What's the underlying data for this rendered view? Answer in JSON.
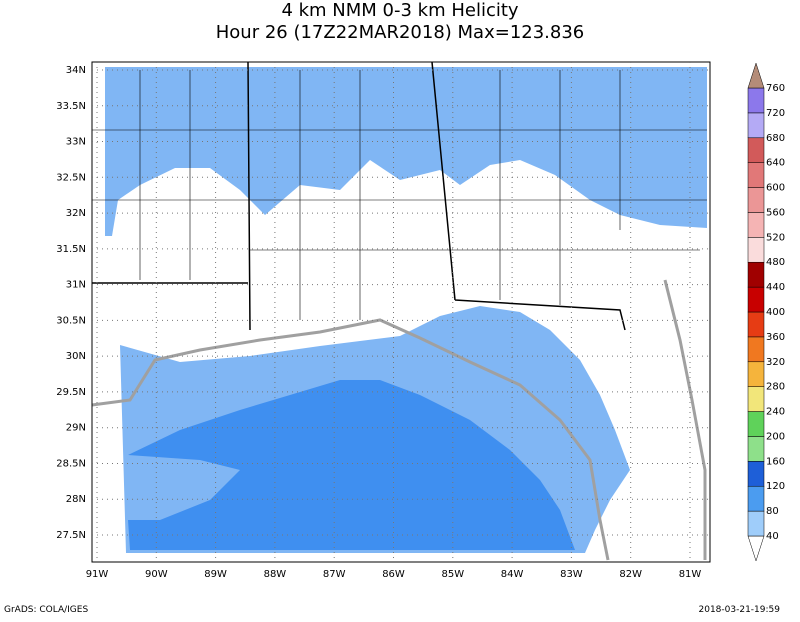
{
  "header": {
    "title_line1": "4 km NMM 0-3 km Helicity",
    "title_line2": "Hour 26 (17Z22MAR2018) Max=123.836"
  },
  "map": {
    "lat_labels": [
      "34N",
      "33.5N",
      "33N",
      "32.5N",
      "32N",
      "31.5N",
      "31N",
      "30.5N",
      "30N",
      "29.5N",
      "29N",
      "28.5N",
      "28N",
      "27.5N"
    ],
    "lon_labels": [
      "91W",
      "90W",
      "89W",
      "88W",
      "87W",
      "86W",
      "85W",
      "84W",
      "83W",
      "82W",
      "81W"
    ]
  },
  "colorbar": {
    "levels": [
      40,
      80,
      120,
      160,
      200,
      240,
      280,
      320,
      360,
      400,
      440,
      480,
      520,
      560,
      600,
      640,
      680,
      720,
      760
    ],
    "colors": [
      "#ffffff",
      "#9fcdfa",
      "#4b9cf0",
      "#1e5fd8",
      "#8ee08a",
      "#5fd25a",
      "#f2e67a",
      "#f5b43c",
      "#f07820",
      "#e63c14",
      "#c80000",
      "#a00000",
      "#fadcdc",
      "#f5b4b4",
      "#eb9696",
      "#e17878",
      "#d25a5a",
      "#b4aaf5",
      "#8c78eb",
      "#4b3cd2",
      "#b48c78"
    ]
  },
  "footer": {
    "left": "GrADS: COLA/IGES",
    "right": "2018-03-21-19:59"
  }
}
